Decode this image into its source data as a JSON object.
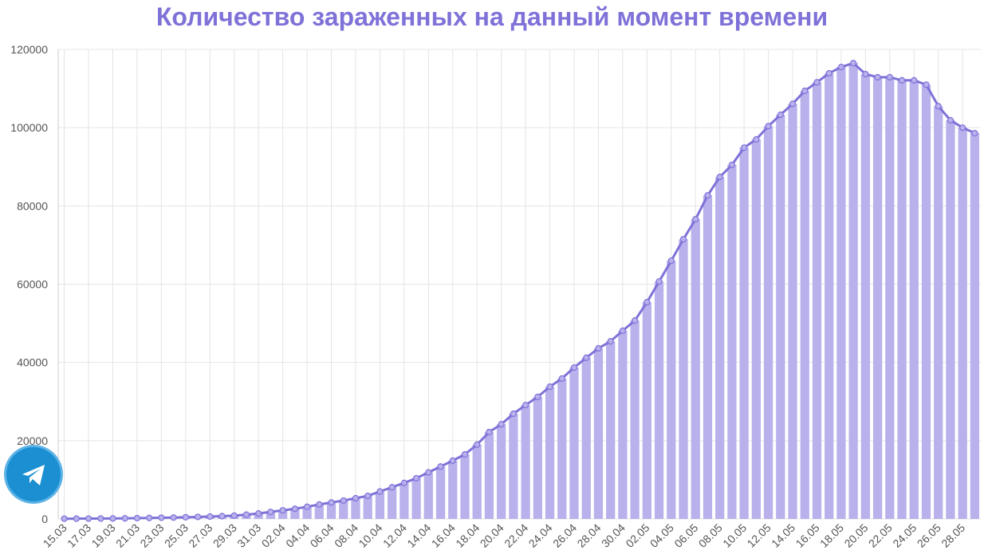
{
  "chart_data": {
    "type": "bar_line",
    "title": "Количество зараженных на данный момент времени",
    "categories": [
      "15.03",
      null,
      "17.03",
      null,
      "19.03",
      null,
      "21.03",
      null,
      "23.03",
      null,
      "25.03",
      null,
      "27.03",
      null,
      "29.03",
      null,
      "31.03",
      null,
      "02.04",
      null,
      "04.04",
      null,
      "06.04",
      null,
      "08.04",
      null,
      "10.04",
      null,
      "12.04",
      null,
      "14.04",
      null,
      "16.04",
      null,
      "18.04",
      null,
      "20.04",
      null,
      "22.04",
      null,
      "24.04",
      null,
      "26.04",
      null,
      "28.04",
      null,
      "30.04",
      null,
      "02.05",
      null,
      "04.05",
      null,
      "06.05",
      null,
      "08.05",
      null,
      "10.05",
      null,
      "12.05",
      null,
      "14.05",
      null,
      "16.05",
      null,
      "18.05",
      null,
      "20.05",
      null,
      "22.05",
      null,
      "24.05",
      null,
      "26.05",
      null,
      "28.05",
      null
    ],
    "values": [
      60,
      70,
      90,
      110,
      130,
      160,
      200,
      250,
      300,
      360,
      430,
      520,
      620,
      720,
      850,
      1100,
      1400,
      1800,
      2200,
      2600,
      3100,
      3700,
      4200,
      4700,
      5300,
      5900,
      7000,
      8100,
      9200,
      10400,
      11900,
      13400,
      14900,
      16500,
      19000,
      22200,
      24200,
      26900,
      29100,
      31200,
      33800,
      35900,
      38700,
      41200,
      43600,
      45400,
      48100,
      50700,
      55400,
      60700,
      66000,
      71500,
      76600,
      82700,
      87400,
      90500,
      94900,
      97000,
      100400,
      103300,
      106100,
      109400,
      111600,
      113900,
      115500,
      116500,
      113700,
      112900,
      112900,
      112100,
      112100,
      111000,
      105500,
      101900,
      100000,
      98600
    ],
    "bar_color": "#b8b1ec",
    "line_color": "#7e72d8",
    "ylim": [
      0,
      120000
    ],
    "yticks": [
      0,
      20000,
      40000,
      60000,
      80000,
      100000,
      120000
    ],
    "grid": true
  }
}
